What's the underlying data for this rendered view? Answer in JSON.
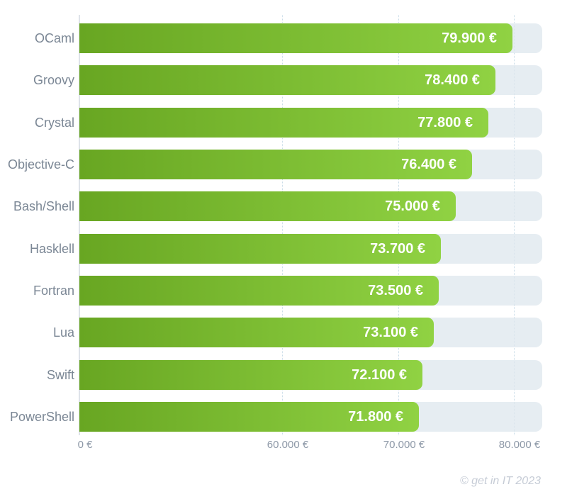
{
  "chart_data": {
    "type": "bar",
    "orientation": "horizontal",
    "categories": [
      "OCaml",
      "Groovy",
      "Crystal",
      "Objective-C",
      "Bash/Shell",
      "Hasklell",
      "Fortran",
      "Lua",
      "Swift",
      "PowerShell"
    ],
    "values": [
      79900,
      78400,
      77800,
      76400,
      75000,
      73700,
      73500,
      73100,
      72100,
      71800
    ],
    "value_labels": [
      "79.900 €",
      "78.400 €",
      "77.800 €",
      "76.400 €",
      "75.000 €",
      "73.700 €",
      "73.500 €",
      "73.100 €",
      "72.100 €",
      "71.800 €"
    ],
    "x_ticks": [
      {
        "label": "0 €",
        "value": 0
      },
      {
        "label": "60.000 €",
        "value": 60000
      },
      {
        "label": "70.000 €",
        "value": 70000
      },
      {
        "label": "80.000 €",
        "value": 80000
      }
    ],
    "x_axis": {
      "min": 0,
      "max": 82400,
      "scale_note": "broken axis: segment 0-60.000 is compressed, linear from 60.000 to 80.000",
      "grid": "dotted vertical gridlines at 60.000 / 70.000 / 80.000"
    },
    "ylabel": "",
    "xlabel": ""
  },
  "footer": {
    "credit": "© get in IT 2023"
  },
  "colors": {
    "bar_gradient_start": "#68a622",
    "bar_gradient_end": "#90d243",
    "track": "#e7edf2",
    "gridline": "#c9dce8",
    "axis_line": "#dfe3e9",
    "category_label": "#7b8795",
    "tick_label": "#8d98a7",
    "value_label": "#ffffff",
    "footer_text": "#c6ccd6",
    "background": "#ffffff"
  }
}
